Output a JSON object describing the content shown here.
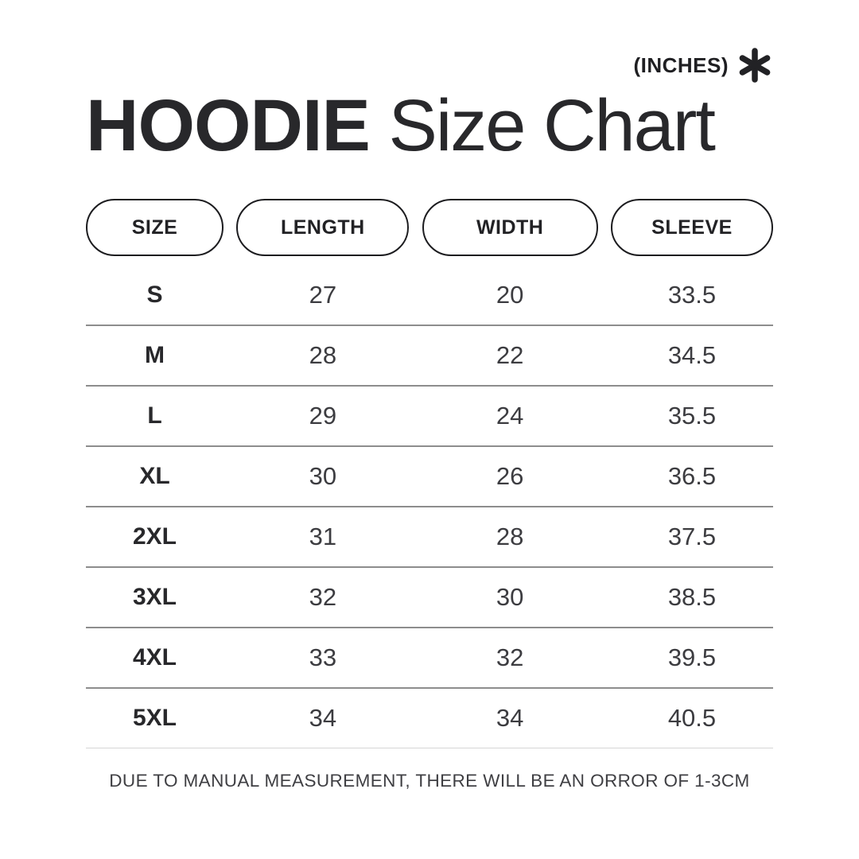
{
  "header": {
    "units_label": "(INCHES)",
    "title_bold": "HOODIE",
    "title_regular": " Size Chart",
    "asterisk_icon": "six-spoke-asterisk"
  },
  "chart_data": {
    "type": "table",
    "title": "HOODIE Size Chart",
    "units": "INCHES",
    "columns": [
      "SIZE",
      "LENGTH",
      "WIDTH",
      "SLEEVE"
    ],
    "rows": [
      [
        "S",
        27,
        20,
        33.5
      ],
      [
        "M",
        28,
        22,
        34.5
      ],
      [
        "L",
        29,
        24,
        35.5
      ],
      [
        "XL",
        30,
        26,
        36.5
      ],
      [
        "2XL",
        31,
        28,
        37.5
      ],
      [
        "3XL",
        32,
        30,
        38.5
      ],
      [
        "4XL",
        33,
        32,
        39.5
      ],
      [
        "5XL",
        34,
        34,
        40.5
      ]
    ]
  },
  "footer": {
    "note": "DUE TO MANUAL MEASUREMENT, THERE WILL BE AN ORROR OF 1-3CM"
  },
  "colors": {
    "background": "#ffffff",
    "text": "#28282b",
    "number_text": "#3c3c40",
    "pill_border": "#1c1c1f",
    "row_divider": "#8d8d8d",
    "footer_divider": "#d6d6d6"
  }
}
